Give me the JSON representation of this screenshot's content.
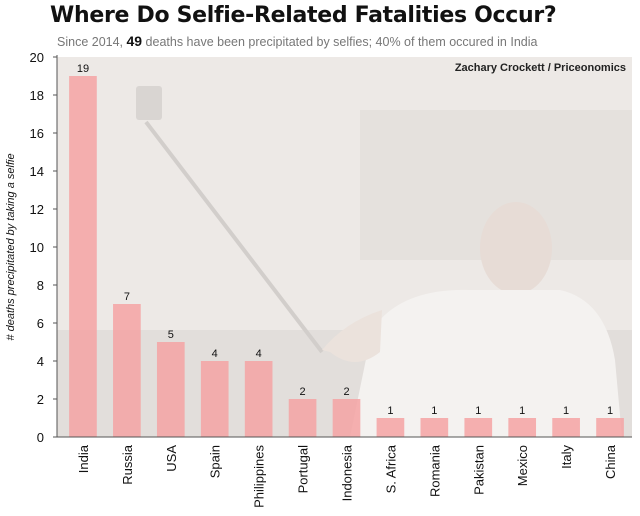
{
  "header": {
    "title": "Where Do Selfie-Related Fatalities Occur?",
    "subtitle_pre": "Since 2014, ",
    "subtitle_num": "49",
    "subtitle_post": " deaths have been precipitated by selfies; 40% of them occured in India",
    "credit": "Zachary Crockett / Priceonomics"
  },
  "colors": {
    "bar": "#f5a3a3",
    "plot_bg": "#ede9e6",
    "axis": "#555555"
  },
  "chart_data": {
    "type": "bar",
    "title": "Where Do Selfie-Related Fatalities Occur?",
    "ylabel": "# deaths precipitated by taking a selfie",
    "xlabel": "",
    "ylim": [
      0,
      20
    ],
    "yticks": [
      0,
      2,
      4,
      6,
      8,
      10,
      12,
      14,
      16,
      18,
      20
    ],
    "grid": false,
    "categories": [
      "India",
      "Russia",
      "USA",
      "Spain",
      "Philippines",
      "Portugal",
      "Indonesia",
      "S. Africa",
      "Romania",
      "Pakistan",
      "Mexico",
      "Italy",
      "China"
    ],
    "values": [
      19,
      7,
      5,
      4,
      4,
      2,
      2,
      1,
      1,
      1,
      1,
      1,
      1
    ]
  }
}
